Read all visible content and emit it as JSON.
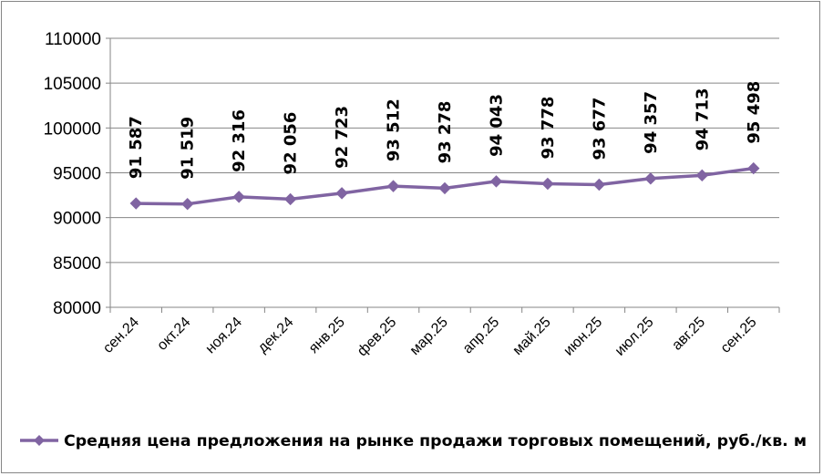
{
  "chart_data": {
    "type": "line",
    "categories": [
      "сен.24",
      "окт.24",
      "ноя.24",
      "дек.24",
      "янв.25",
      "фев.25",
      "мар.25",
      "апр.25",
      "май.25",
      "июн.25",
      "июл.25",
      "авг.25",
      "сен.25"
    ],
    "series": [
      {
        "name": "Средняя цена предложения на рынке продажи торговых помещений,  руб./кв. м",
        "values": [
          91587,
          91519,
          92316,
          92056,
          92723,
          93512,
          93278,
          94043,
          93778,
          93677,
          94357,
          94713,
          95498
        ],
        "labels": [
          "91 587",
          "91 519",
          "92 316",
          "92 056",
          "92 723",
          "93 512",
          "93 278",
          "94 043",
          "93 778",
          "93 677",
          "94 357",
          "94 713",
          "95 498"
        ],
        "color": "#8064a2"
      }
    ],
    "yticks": [
      "80000",
      "85000",
      "90000",
      "95000",
      "100000",
      "105000",
      "110000"
    ],
    "ylim": [
      80000,
      110000
    ],
    "ystep": 5000,
    "grid": true,
    "legend_position": "bottom"
  }
}
